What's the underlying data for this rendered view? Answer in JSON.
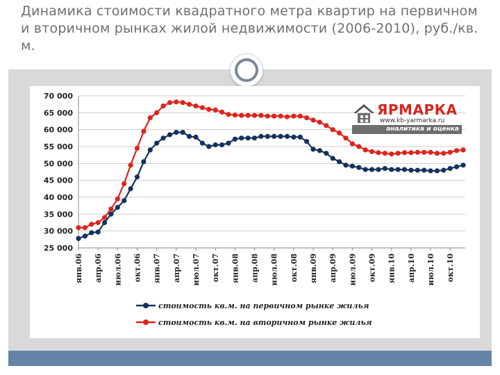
{
  "slide": {
    "title": "Динамика стоимости квадратного метра квартир на первичном и вторичном рынках жилой недвижимости (2006-2010), руб./кв. м."
  },
  "logo": {
    "name": "ЯРМАРКА",
    "url": "www.kb-yarmarka.ru",
    "tagline": "аналитика и оценка",
    "icon": "house-icon",
    "color": "#d6261f"
  },
  "chart_data": {
    "type": "line",
    "title": "",
    "xlabel": "",
    "ylabel": "",
    "ylim": [
      25000,
      70000
    ],
    "yticks": [
      70000,
      65000,
      60000,
      55000,
      50000,
      45000,
      40000,
      35000,
      30000,
      25000
    ],
    "ytick_labels": [
      "70 000",
      "65 000",
      "60 000",
      "55 000",
      "50 000",
      "45 000",
      "40 000",
      "35 000",
      "30 000",
      "25 000"
    ],
    "xtick_labels": [
      "янв.06",
      "апр.06",
      "июл.06",
      "окт.06",
      "янв.07",
      "апр.07",
      "июл.07",
      "окт.07",
      "янв.08",
      "апр.08",
      "июл.08",
      "окт.08",
      "янв.09",
      "апр.09",
      "июл.09",
      "окт.09",
      "янв.10",
      "апр.10",
      "июл.10",
      "окт.10"
    ],
    "x_start": "янв.06",
    "x_end": "дек.10",
    "legend_position": "bottom",
    "grid": true,
    "series": [
      {
        "name": "стоимость кв.м. на первичном рынке жилья",
        "color": "#15325e",
        "values": [
          27800,
          28500,
          29500,
          29700,
          32500,
          35000,
          37000,
          39000,
          42500,
          46000,
          50500,
          54000,
          56000,
          57500,
          58500,
          59200,
          59200,
          58000,
          57800,
          56000,
          55000,
          55500,
          55500,
          56000,
          57200,
          57500,
          57500,
          57500,
          58000,
          58000,
          58000,
          58000,
          58000,
          57800,
          57800,
          56500,
          54200,
          53800,
          53000,
          51500,
          50500,
          49500,
          49200,
          48800,
          48200,
          48200,
          48200,
          48500,
          48200,
          48200,
          48200,
          48000,
          48000,
          48000,
          47800,
          47800,
          48000,
          48500,
          49000,
          49500
        ]
      },
      {
        "name": "стоимость кв.м. на вторичном рынке жилья",
        "color": "#e0231c",
        "values": [
          31000,
          31000,
          32000,
          32500,
          34000,
          36500,
          39500,
          44000,
          49500,
          54500,
          59500,
          63500,
          65000,
          67000,
          68000,
          68200,
          68000,
          67500,
          67000,
          66500,
          66000,
          65800,
          65200,
          64500,
          64300,
          64200,
          64200,
          64200,
          64200,
          64000,
          64000,
          64000,
          63800,
          64000,
          64000,
          63500,
          62800,
          62200,
          61200,
          60000,
          59000,
          57500,
          55800,
          55000,
          54000,
          53500,
          53200,
          53000,
          52800,
          53000,
          53200,
          53200,
          53300,
          53300,
          53300,
          53000,
          53000,
          53300,
          53800,
          54000
        ]
      }
    ]
  }
}
